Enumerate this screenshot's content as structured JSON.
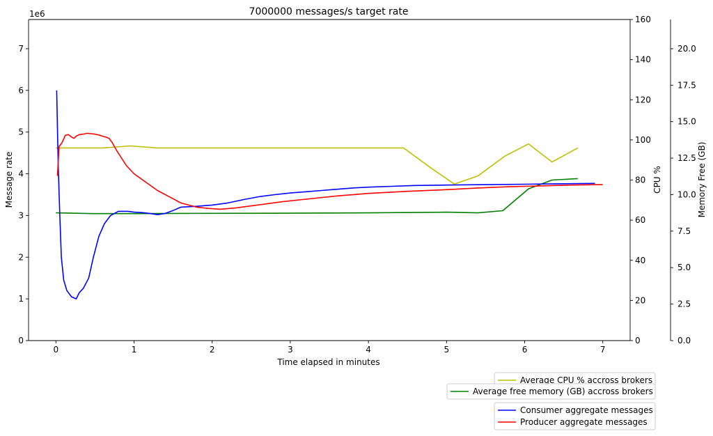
{
  "chart_data": {
    "type": "line",
    "title": "7000000 messages/s target rate",
    "xlabel": "Time elapsed in minutes",
    "ylabel": "Message rate",
    "y_offset_label": "1e6",
    "y2label": "CPU %",
    "y3label": "Memory Free (GB)",
    "xlim": [
      -0.35,
      7.35
    ],
    "ylim": [
      0,
      7.7
    ],
    "y2lim": [
      0,
      160
    ],
    "y3lim": [
      0,
      22
    ],
    "x_ticks": [
      0,
      1,
      2,
      3,
      4,
      5,
      6,
      7
    ],
    "y_ticks": [
      0,
      1,
      2,
      3,
      4,
      5,
      6,
      7
    ],
    "y2_ticks": [
      0,
      20,
      40,
      60,
      80,
      100,
      120,
      140,
      160
    ],
    "y3_ticks": [
      "0.0",
      "2.5",
      "5.0",
      "7.5",
      "10.0",
      "12.5",
      "15.0",
      "17.5",
      "20.0"
    ],
    "series": [
      {
        "name": "Average CPU % accross brokers",
        "axis": "y2",
        "color": "#bfbf00",
        "x": [
          0,
          0.3,
          0.6,
          0.95,
          1.3,
          2.0,
          3.0,
          4.0,
          4.45,
          4.8,
          5.1,
          5.4,
          5.75,
          6.05,
          6.35,
          6.68
        ],
        "y": [
          96,
          96,
          96,
          97,
          96,
          96,
          96,
          96,
          96,
          86,
          78,
          82,
          92,
          98,
          89,
          96
        ]
      },
      {
        "name": "Average free memory (GB) accross brokers",
        "axis": "y3",
        "color": "#008000",
        "x": [
          0,
          0.5,
          1.0,
          2.0,
          3.0,
          4.0,
          5.0,
          5.4,
          5.72,
          6.05,
          6.35,
          6.68
        ],
        "y": [
          8.75,
          8.7,
          8.7,
          8.72,
          8.73,
          8.75,
          8.8,
          8.75,
          8.9,
          10.4,
          11.0,
          11.1
        ]
      },
      {
        "name": "Consumer aggregate messages",
        "axis": "y",
        "color": "#0000ff",
        "x": [
          0.01,
          0.03,
          0.05,
          0.07,
          0.1,
          0.14,
          0.2,
          0.26,
          0.3,
          0.35,
          0.42,
          0.48,
          0.55,
          0.62,
          0.7,
          0.8,
          0.85,
          0.92,
          1.0,
          1.1,
          1.2,
          1.3,
          1.4,
          1.5,
          1.6,
          1.8,
          2.0,
          2.2,
          2.4,
          2.6,
          2.8,
          3.0,
          3.2,
          3.4,
          3.6,
          3.8,
          4.0,
          4.3,
          4.6,
          5.0,
          5.5,
          6.0,
          6.4,
          6.9
        ],
        "y": [
          6.0,
          4.2,
          3.0,
          2.0,
          1.45,
          1.2,
          1.05,
          1.0,
          1.15,
          1.25,
          1.5,
          2.0,
          2.5,
          2.8,
          3.0,
          3.1,
          3.1,
          3.1,
          3.08,
          3.07,
          3.05,
          3.02,
          3.05,
          3.12,
          3.2,
          3.22,
          3.25,
          3.3,
          3.38,
          3.45,
          3.5,
          3.54,
          3.57,
          3.6,
          3.63,
          3.66,
          3.68,
          3.7,
          3.72,
          3.73,
          3.74,
          3.75,
          3.76,
          3.77
        ]
      },
      {
        "name": "Producer aggregate messages",
        "axis": "y",
        "color": "#ff0000",
        "x": [
          0.02,
          0.04,
          0.08,
          0.12,
          0.16,
          0.2,
          0.23,
          0.26,
          0.3,
          0.35,
          0.4,
          0.45,
          0.5,
          0.55,
          0.6,
          0.64,
          0.68,
          0.72,
          0.78,
          0.9,
          1.0,
          1.15,
          1.3,
          1.45,
          1.6,
          1.8,
          1.95,
          2.1,
          2.3,
          2.5,
          2.7,
          2.9,
          3.2,
          3.6,
          4.0,
          4.5,
          5.0,
          5.4,
          5.8,
          6.2,
          6.6,
          7.0
        ],
        "y": [
          3.95,
          4.65,
          4.75,
          4.92,
          4.94,
          4.88,
          4.85,
          4.9,
          4.94,
          4.95,
          4.97,
          4.96,
          4.95,
          4.93,
          4.9,
          4.88,
          4.85,
          4.75,
          4.55,
          4.2,
          4.0,
          3.8,
          3.6,
          3.45,
          3.3,
          3.2,
          3.17,
          3.15,
          3.18,
          3.23,
          3.28,
          3.33,
          3.39,
          3.47,
          3.53,
          3.58,
          3.62,
          3.66,
          3.69,
          3.71,
          3.73,
          3.74
        ]
      }
    ],
    "legends": [
      {
        "placement": "bottom-right",
        "entries": [
          "Average CPU % accross brokers"
        ]
      },
      {
        "placement": "bottom-right",
        "entries": [
          "Average free memory (GB) accross brokers"
        ]
      },
      {
        "placement": "bottom-right",
        "entries": [
          "Consumer aggregate messages",
          "Producer aggregate messages"
        ]
      }
    ]
  }
}
